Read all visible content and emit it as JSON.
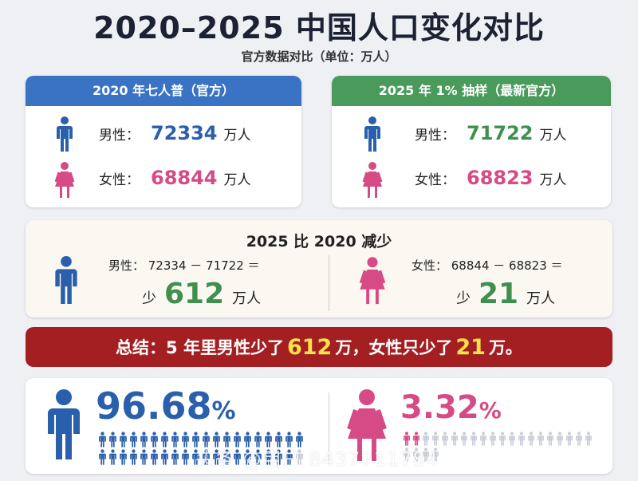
{
  "title": "2020–2025 中国人口变化对比",
  "subtitle": "官方数据对比（单位：万人）",
  "census2020": {
    "header": "2020 年七人普（官方）",
    "male_label": "男性：",
    "male_value": "72334",
    "female_label": "女性：",
    "female_value": "68844",
    "unit": "万人"
  },
  "sample2025": {
    "header": "2025 年 1% 抽样（最新官方）",
    "male_label": "男性：",
    "male_value": "71722",
    "female_label": "女性：",
    "female_value": "68823",
    "unit": "万人"
  },
  "decrease": {
    "title": "2025 比 2020 减少",
    "male_calc": "男性： 72334 － 71722 ＝",
    "male_prefix": "少",
    "male_value": "612",
    "male_unit": "万人",
    "female_calc": "女性： 68844 － 68823 ＝",
    "female_prefix": "少",
    "female_value": "21",
    "female_unit": "万人"
  },
  "summary": {
    "part1": "总结：5 年里男性少了",
    "male_value": "612",
    "part2": "万，女性只少了",
    "female_value": "21",
    "part3": "万。"
  },
  "share": {
    "male_number": "96.68",
    "male_symbol": "%",
    "female_number": "3.32",
    "female_symbol": "%",
    "male_share": 0.9668,
    "female_share": 0.0332
  },
  "watermark": "头条 @用户 8437711784",
  "colors": {
    "blue": "#2a5fab",
    "pink": "#d64a85",
    "green": "#3f8f4f",
    "red": "#a31f22",
    "yellow": "#ffe14a",
    "header_blue": "#3b73c4",
    "header_green": "#4a9a5c"
  },
  "icons": {
    "male": "male-person-icon",
    "female": "female-person-icon"
  }
}
